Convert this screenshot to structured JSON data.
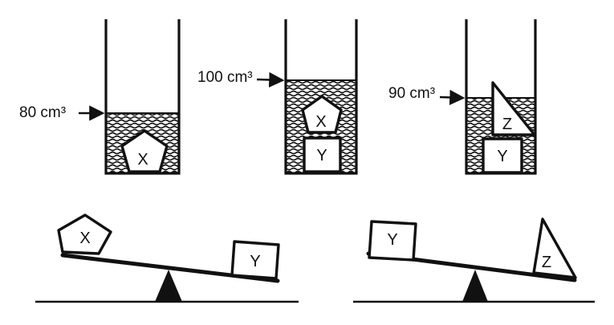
{
  "cylinders": [
    {
      "volume_label": "80 cm³",
      "objects": [
        "X"
      ]
    },
    {
      "volume_label": "100 cm³",
      "objects": [
        "X",
        "Y"
      ]
    },
    {
      "volume_label": "90 cm³",
      "objects": [
        "Z",
        "Y"
      ]
    }
  ],
  "balances": [
    {
      "heavier_side": "Y",
      "objects": [
        "X",
        "Y"
      ]
    },
    {
      "heavier_side": "Z",
      "objects": [
        "Y",
        "Z"
      ]
    }
  ]
}
